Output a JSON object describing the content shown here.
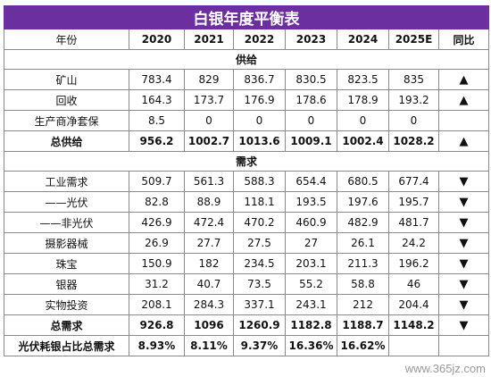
{
  "title": "白银年度平衡表",
  "header": [
    "年份",
    "2020",
    "2021",
    "2022",
    "2023",
    "2024",
    "2025E",
    "同比"
  ],
  "sections": [
    {
      "label": "供给",
      "rows": [
        {
          "name": "矿山",
          "values": [
            "783.4",
            "829",
            "836.7",
            "830.5",
            "823.5",
            "835"
          ],
          "trend": "▲",
          "bold": false
        },
        {
          "name": "回收",
          "values": [
            "164.3",
            "173.7",
            "176.9",
            "178.6",
            "178.9",
            "193.2"
          ],
          "trend": "▲",
          "bold": false
        },
        {
          "name": "生产商净套保",
          "values": [
            "8.5",
            "0",
            "0",
            "0",
            "0",
            "0"
          ],
          "trend": "",
          "bold": false
        },
        {
          "name": "总供给",
          "values": [
            "956.2",
            "1002.7",
            "1013.6",
            "1009.1",
            "1002.4",
            "1028.2"
          ],
          "trend": "▲",
          "bold": true
        }
      ]
    },
    {
      "label": "需求",
      "rows": [
        {
          "name": "工业需求",
          "values": [
            "509.7",
            "561.3",
            "588.3",
            "654.4",
            "680.5",
            "677.4"
          ],
          "trend": "▼",
          "bold": false
        },
        {
          "name": "——光伏",
          "values": [
            "82.8",
            "88.9",
            "118.1",
            "193.5",
            "197.6",
            "195.7"
          ],
          "trend": "▼",
          "bold": false
        },
        {
          "name": "——非光伏",
          "values": [
            "426.9",
            "472.4",
            "470.2",
            "460.9",
            "482.9",
            "481.7"
          ],
          "trend": "▼",
          "bold": false
        },
        {
          "name": "摄影器械",
          "values": [
            "26.9",
            "27.7",
            "27.5",
            "27",
            "26.1",
            "24.2"
          ],
          "trend": "▼",
          "bold": false
        },
        {
          "name": "珠宝",
          "values": [
            "150.9",
            "182",
            "234.5",
            "203.1",
            "211.3",
            "196.2"
          ],
          "trend": "▼",
          "bold": false
        },
        {
          "name": "银器",
          "values": [
            "31.2",
            "40.7",
            "73.5",
            "55.2",
            "58.8",
            "46"
          ],
          "trend": "▼",
          "bold": false
        },
        {
          "name": "实物投资",
          "values": [
            "208.1",
            "284.3",
            "337.1",
            "243.1",
            "212",
            "204.4"
          ],
          "trend": "▼",
          "bold": false
        },
        {
          "name": "总需求",
          "values": [
            "926.8",
            "1096",
            "1260.9",
            "1182.8",
            "1188.7",
            "1148.2"
          ],
          "trend": "▼",
          "bold": true
        },
        {
          "name": "光伏耗银占比总需求",
          "values": [
            "8.93%",
            "8.11%",
            "9.37%",
            "16.36%",
            "16.62%",
            ""
          ],
          "trend": "",
          "bold": true
        }
      ]
    }
  ],
  "watermark": "www.365jz.com"
}
